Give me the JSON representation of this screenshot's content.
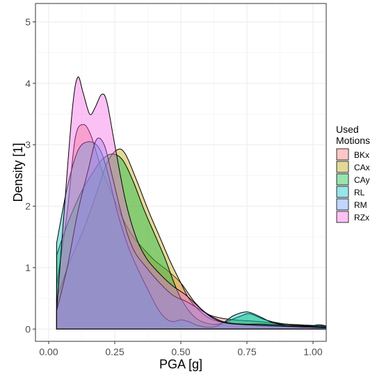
{
  "chart_data": {
    "type": "area",
    "subtype": "density",
    "xlabel": "PGA [g]",
    "ylabel": "Density [1]",
    "xlim": [
      -0.05,
      1.05
    ],
    "ylim": [
      -0.2,
      5.3
    ],
    "x_ticks": [
      0,
      0.25,
      0.5,
      0.75,
      1.0
    ],
    "x_tick_labels": [
      "0.00",
      "0.25",
      "0.50",
      "0.75",
      "1.00"
    ],
    "y_ticks": [
      0,
      1,
      2,
      3,
      4,
      5
    ],
    "y_tick_labels": [
      "0",
      "1",
      "2",
      "3",
      "4",
      "5"
    ],
    "grid": true,
    "legend": {
      "title_lines": [
        "Used",
        "Motions"
      ],
      "position": "right"
    },
    "fill_opacity": 0.4,
    "series": [
      {
        "name": "BKx",
        "color": "#F8766D",
        "points": [
          [
            0.03,
            0.7
          ],
          [
            0.07,
            1.9
          ],
          [
            0.1,
            3.1
          ],
          [
            0.13,
            3.33
          ],
          [
            0.16,
            3.15
          ],
          [
            0.2,
            2.6
          ],
          [
            0.24,
            2.2
          ],
          [
            0.28,
            1.8
          ],
          [
            0.32,
            1.5
          ],
          [
            0.36,
            1.3
          ],
          [
            0.4,
            1.12
          ],
          [
            0.45,
            0.95
          ],
          [
            0.5,
            0.75
          ],
          [
            0.55,
            0.45
          ],
          [
            0.6,
            0.25
          ],
          [
            0.65,
            0.18
          ],
          [
            0.7,
            0.15
          ],
          [
            0.8,
            0.12
          ],
          [
            0.9,
            0.08
          ],
          [
            1.05,
            0.05
          ]
        ]
      },
      {
        "name": "CAx",
        "color": "#B79F00",
        "points": [
          [
            0.03,
            0.5
          ],
          [
            0.08,
            1.1
          ],
          [
            0.13,
            1.6
          ],
          [
            0.18,
            2.2
          ],
          [
            0.22,
            2.7
          ],
          [
            0.26,
            2.92
          ],
          [
            0.29,
            2.85
          ],
          [
            0.33,
            2.45
          ],
          [
            0.38,
            1.9
          ],
          [
            0.42,
            1.5
          ],
          [
            0.46,
            1.1
          ],
          [
            0.5,
            0.75
          ],
          [
            0.53,
            0.5
          ],
          [
            0.57,
            0.3
          ],
          [
            0.62,
            0.15
          ],
          [
            0.68,
            0.1
          ],
          [
            0.75,
            0.08
          ],
          [
            0.85,
            0.06
          ],
          [
            1.05,
            0.03
          ]
        ]
      },
      {
        "name": "CAy",
        "color": "#00BA38",
        "points": [
          [
            0.03,
            1.2
          ],
          [
            0.07,
            1.7
          ],
          [
            0.12,
            2.2
          ],
          [
            0.16,
            2.5
          ],
          [
            0.2,
            2.75
          ],
          [
            0.24,
            2.85
          ],
          [
            0.28,
            2.75
          ],
          [
            0.32,
            2.4
          ],
          [
            0.36,
            1.95
          ],
          [
            0.4,
            1.55
          ],
          [
            0.44,
            1.15
          ],
          [
            0.47,
            0.8
          ],
          [
            0.5,
            0.5
          ],
          [
            0.54,
            0.25
          ],
          [
            0.58,
            0.12
          ],
          [
            0.64,
            0.08
          ],
          [
            0.72,
            0.2
          ],
          [
            0.76,
            0.25
          ],
          [
            0.82,
            0.15
          ],
          [
            0.9,
            0.08
          ],
          [
            1.05,
            0.04
          ]
        ]
      },
      {
        "name": "RL",
        "color": "#00BFC4",
        "points": [
          [
            0.03,
            1.4
          ],
          [
            0.07,
            2.3
          ],
          [
            0.11,
            2.9
          ],
          [
            0.15,
            3.05
          ],
          [
            0.19,
            2.95
          ],
          [
            0.22,
            2.6
          ],
          [
            0.26,
            1.9
          ],
          [
            0.3,
            1.35
          ],
          [
            0.34,
            0.95
          ],
          [
            0.38,
            0.6
          ],
          [
            0.41,
            0.35
          ],
          [
            0.44,
            0.18
          ],
          [
            0.47,
            0.12
          ],
          [
            0.5,
            0.15
          ],
          [
            0.53,
            0.12
          ],
          [
            0.57,
            0.05
          ],
          [
            0.62,
            0.03
          ],
          [
            0.66,
            0.1
          ],
          [
            0.7,
            0.22
          ],
          [
            0.75,
            0.28
          ],
          [
            0.8,
            0.2
          ],
          [
            0.85,
            0.1
          ],
          [
            0.92,
            0.05
          ],
          [
            0.97,
            0.03
          ],
          [
            1.02,
            0.07
          ],
          [
            1.05,
            0.05
          ]
        ]
      },
      {
        "name": "RM",
        "color": "#619CFF",
        "points": [
          [
            0.03,
            0.3
          ],
          [
            0.07,
            1.0
          ],
          [
            0.11,
            1.9
          ],
          [
            0.15,
            2.6
          ],
          [
            0.18,
            3.08
          ],
          [
            0.21,
            3.0
          ],
          [
            0.24,
            2.5
          ],
          [
            0.28,
            1.8
          ],
          [
            0.32,
            1.3
          ],
          [
            0.37,
            1.0
          ],
          [
            0.42,
            0.75
          ],
          [
            0.47,
            0.55
          ],
          [
            0.52,
            0.45
          ],
          [
            0.56,
            0.35
          ],
          [
            0.61,
            0.22
          ],
          [
            0.66,
            0.12
          ],
          [
            0.72,
            0.08
          ],
          [
            0.8,
            0.08
          ],
          [
            0.9,
            0.06
          ],
          [
            1.05,
            0.03
          ]
        ]
      },
      {
        "name": "RZx",
        "color": "#F564E3",
        "points": [
          [
            0.03,
            0.3
          ],
          [
            0.06,
            2.0
          ],
          [
            0.09,
            3.6
          ],
          [
            0.11,
            4.1
          ],
          [
            0.13,
            3.85
          ],
          [
            0.155,
            3.5
          ],
          [
            0.175,
            3.6
          ],
          [
            0.2,
            3.82
          ],
          [
            0.22,
            3.7
          ],
          [
            0.25,
            3.0
          ],
          [
            0.29,
            2.1
          ],
          [
            0.33,
            1.5
          ],
          [
            0.37,
            1.15
          ],
          [
            0.42,
            0.9
          ],
          [
            0.47,
            0.7
          ],
          [
            0.52,
            0.55
          ],
          [
            0.57,
            0.35
          ],
          [
            0.62,
            0.18
          ],
          [
            0.67,
            0.1
          ],
          [
            0.75,
            0.07
          ],
          [
            0.85,
            0.05
          ],
          [
            1.05,
            0.02
          ]
        ]
      }
    ]
  }
}
